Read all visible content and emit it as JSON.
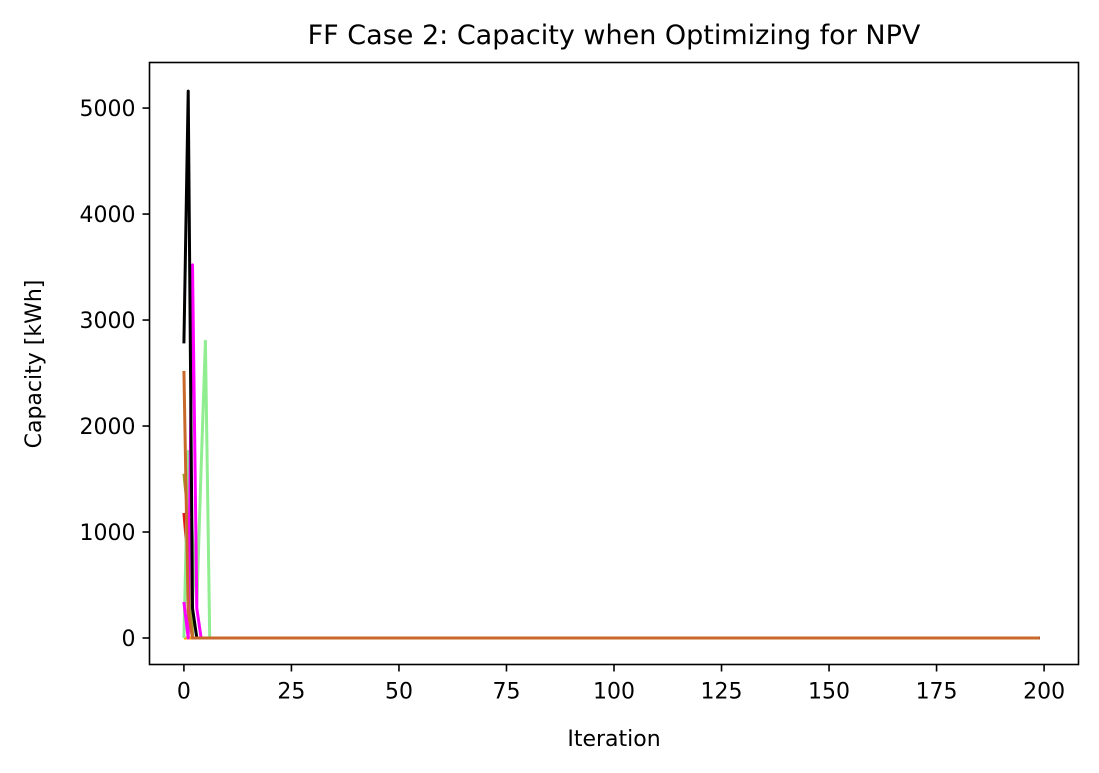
{
  "chart_data": {
    "type": "line",
    "title": "FF Case 2: Capacity when Optimizing for NPV",
    "xlabel": "Iteration",
    "ylabel": "Capacity [kWh]",
    "xlim": [
      -8,
      208
    ],
    "ylim": [
      -250,
      5430
    ],
    "xticks": [
      0,
      25,
      50,
      75,
      100,
      125,
      150,
      175,
      200
    ],
    "xtick_labels": [
      "0",
      "25",
      "50",
      "75",
      "100",
      "125",
      "150",
      "175",
      "200"
    ],
    "yticks": [
      0,
      1000,
      2000,
      3000,
      4000,
      5000
    ],
    "ytick_labels": [
      "0",
      "1000",
      "2000",
      "3000",
      "4000",
      "5000"
    ],
    "grid": false,
    "legend": "none",
    "series": [
      {
        "color": "#ffa500",
        "points": [
          [
            0,
            0
          ],
          [
            199,
            0
          ]
        ]
      },
      {
        "color": "#e01b1b",
        "points": [
          [
            0,
            1180
          ],
          [
            1,
            700
          ],
          [
            2,
            0
          ],
          [
            199,
            0
          ]
        ]
      },
      {
        "color": "#9c9c2a",
        "points": [
          [
            0,
            1550
          ],
          [
            1,
            1150
          ],
          [
            2,
            0
          ],
          [
            199,
            0
          ]
        ]
      },
      {
        "color": "#90ee90",
        "points": [
          [
            0,
            0
          ],
          [
            1,
            1760
          ],
          [
            2,
            950
          ],
          [
            3,
            310
          ],
          [
            4,
            1600
          ],
          [
            5,
            2800
          ],
          [
            6,
            0
          ],
          [
            199,
            0
          ]
        ]
      },
      {
        "color": "#ff00ff",
        "points": [
          [
            0,
            340
          ],
          [
            1,
            0
          ],
          [
            2,
            3520
          ],
          [
            3,
            280
          ],
          [
            4,
            0
          ],
          [
            199,
            0
          ]
        ]
      },
      {
        "color": "#000000",
        "points": [
          [
            0,
            2780
          ],
          [
            1,
            5160
          ],
          [
            2,
            280
          ],
          [
            3,
            0
          ],
          [
            199,
            0
          ]
        ]
      },
      {
        "color": "#c8692b",
        "points": [
          [
            0,
            2520
          ],
          [
            1,
            250
          ],
          [
            2,
            0
          ],
          [
            199,
            0
          ]
        ]
      }
    ]
  }
}
